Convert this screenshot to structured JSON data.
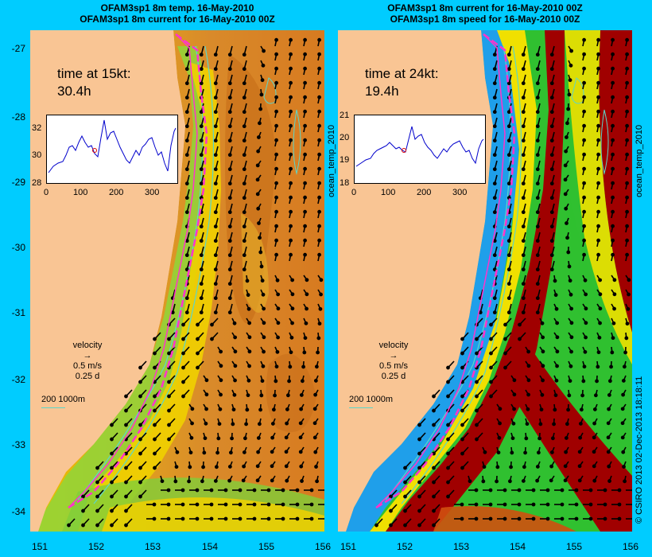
{
  "left": {
    "title1": "OFAM3sp1 8m temp. 16-May-2010",
    "title2": "OFAM3sp1 8m current for 16-May-2010 00Z",
    "time_label": "time at 15kt:",
    "time_value": "30.4h",
    "inset_yticks": [
      "32",
      "30",
      "28"
    ],
    "inset_xticks": [
      "0",
      "100",
      "200",
      "300"
    ],
    "velocity_label": "velocity",
    "velocity_scale": "0.5 m/s",
    "velocity_time": "0.25 d",
    "isobath_label": "200  1000m",
    "side_label": "ocean_temp_2010"
  },
  "right": {
    "title1": "OFAM3sp1 8m current for 16-May-2010 00Z",
    "title2": "OFAM3sp1 8m speed for 16-May-2010 00Z",
    "time_label": "time at 24kt:",
    "time_value": "19.4h",
    "inset_yticks": [
      "21",
      "20",
      "19",
      "18"
    ],
    "inset_xticks": [
      "0",
      "100",
      "200",
      "300"
    ],
    "velocity_label": "velocity",
    "velocity_scale": "0.5 m/s",
    "velocity_time": "0.25 d",
    "isobath_label": "200  1000m",
    "side_label": "ocean_temp_2010"
  },
  "y_ticks": [
    "-27",
    "-28",
    "-29",
    "-30",
    "-31",
    "-32",
    "-33",
    "-34"
  ],
  "x_ticks": [
    "151",
    "152",
    "153",
    "154",
    "155",
    "156"
  ],
  "credit": "© CSIRO 2013   02-Dec-2013 18:18:11",
  "colors": {
    "background": "#00ccff",
    "land": "#f9c594",
    "route": "#ff33cc",
    "isobath": "#5cd6c9"
  }
}
